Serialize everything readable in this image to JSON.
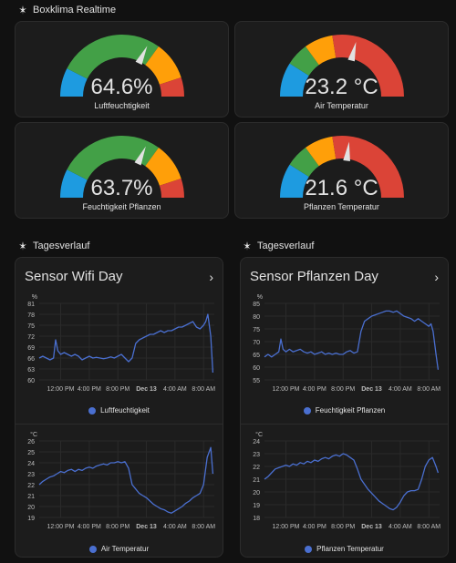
{
  "realtime": {
    "title": "Boxklima Realtime",
    "gauges": [
      {
        "value": 64.6,
        "display": "64.6%",
        "label": "Luftfeuchtigkeit",
        "min": 0,
        "max": 100,
        "type": "humidity"
      },
      {
        "value": 23.2,
        "display": "23.2 °C",
        "label": "Air Temperatur",
        "min": 0,
        "max": 40,
        "type": "temperature"
      },
      {
        "value": 63.7,
        "display": "63.7%",
        "label": "Feuchtigkeit Pflanzen",
        "min": 0,
        "max": 100,
        "type": "humidity"
      },
      {
        "value": 21.6,
        "display": "21.6 °C",
        "label": "Pflanzen Temperatur",
        "min": 0,
        "max": 40,
        "type": "temperature"
      }
    ],
    "colors": {
      "blue": "#1e9be0",
      "green": "#43a047",
      "orange": "#ff9f09",
      "red": "#db4437",
      "needle": "#e1e1e1"
    }
  },
  "history": [
    {
      "section": "Tagesverlauf",
      "title": "Sensor Wifi Day",
      "chevron": "›",
      "x_ticks": [
        "12:00 PM",
        "4:00 PM",
        "8:00 PM",
        "Dec 13",
        "4:00 AM",
        "8:00 AM"
      ]
    },
    {
      "section": "Tagesverlauf",
      "title": "Sensor Pflanzen Day",
      "chevron": "›",
      "x_ticks": [
        "12:00 PM",
        "4:00 PM",
        "8:00 PM",
        "Dec 13",
        "4:00 AM",
        "8:00 AM"
      ]
    }
  ],
  "chart_data": [
    {
      "type": "line",
      "title": "",
      "ylabel": "%",
      "ylim": [
        60,
        81
      ],
      "y_ticks": [
        60,
        63,
        66,
        69,
        72,
        75,
        78,
        81
      ],
      "x_ticks": [
        "12:00 PM",
        "4:00 PM",
        "8:00 PM",
        "Dec 13",
        "4:00 AM",
        "8:00 AM"
      ],
      "xlim": [
        9,
        33.5
      ],
      "series": [
        {
          "name": "Luftfeuchtigkeit",
          "color": "#4a6fd0",
          "x": [
            9,
            9.5,
            10,
            10.5,
            11,
            11.3,
            11.6,
            12,
            12.5,
            13,
            13.5,
            14,
            14.5,
            15,
            15.5,
            16,
            16.5,
            17,
            17.5,
            18,
            18.5,
            19,
            19.5,
            20,
            20.5,
            21,
            21.5,
            22,
            22.5,
            23,
            23.5,
            24,
            24.5,
            25,
            25.5,
            26,
            26.5,
            27,
            27.5,
            28,
            28.5,
            29,
            29.5,
            30,
            30.5,
            31,
            31.5,
            32,
            32.3,
            32.6,
            33,
            33.3
          ],
          "y": [
            66,
            66.5,
            66,
            65.5,
            66,
            71,
            68,
            67,
            67.5,
            67,
            66.5,
            67,
            66.5,
            65.5,
            66,
            66.5,
            66,
            66.2,
            66,
            65.8,
            66,
            66.3,
            66,
            66.5,
            67,
            66,
            65,
            66,
            70,
            71,
            71.5,
            72,
            72.5,
            72.5,
            73,
            73.5,
            73,
            73.5,
            73.5,
            74,
            74.5,
            74.5,
            75,
            75.5,
            76,
            74.5,
            74,
            75,
            76,
            78,
            72,
            62
          ]
        }
      ]
    },
    {
      "type": "line",
      "title": "",
      "ylabel": "°C",
      "ylim": [
        19,
        26
      ],
      "y_ticks": [
        19,
        20,
        21,
        22,
        23,
        24,
        25,
        26
      ],
      "x_ticks": [
        "12:00 PM",
        "4:00 PM",
        "8:00 PM",
        "Dec 13",
        "4:00 AM",
        "8:00 AM"
      ],
      "xlim": [
        9,
        33.5
      ],
      "series": [
        {
          "name": "Air Temperatur",
          "color": "#4a6fd0",
          "x": [
            9,
            9.5,
            10,
            10.5,
            11,
            11.5,
            12,
            12.5,
            13,
            13.5,
            14,
            14.5,
            15,
            15.5,
            16,
            16.5,
            17,
            17.5,
            18,
            18.5,
            19,
            19.5,
            20,
            20.5,
            21,
            21.5,
            22,
            22.5,
            23,
            23.5,
            24,
            24.5,
            25,
            25.5,
            26,
            26.5,
            27,
            27.5,
            28,
            28.5,
            29,
            29.5,
            30,
            30.5,
            31,
            31.5,
            32,
            32.5,
            33,
            33.3
          ],
          "y": [
            22,
            22.3,
            22.5,
            22.7,
            22.8,
            23,
            23.2,
            23.1,
            23.3,
            23.4,
            23.2,
            23.4,
            23.3,
            23.5,
            23.6,
            23.5,
            23.7,
            23.8,
            23.9,
            23.8,
            24,
            24,
            24.1,
            24,
            24.1,
            23.5,
            22,
            21.6,
            21.2,
            21,
            20.8,
            20.5,
            20.2,
            20,
            19.8,
            19.7,
            19.5,
            19.4,
            19.6,
            19.8,
            20,
            20.3,
            20.5,
            20.8,
            21,
            21.2,
            22,
            24.5,
            25.4,
            23
          ]
        }
      ]
    },
    {
      "type": "line",
      "title": "",
      "ylabel": "%",
      "ylim": [
        55,
        85
      ],
      "y_ticks": [
        55,
        60,
        65,
        70,
        75,
        80,
        85
      ],
      "x_ticks": [
        "12:00 PM",
        "4:00 PM",
        "8:00 PM",
        "Dec 13",
        "4:00 AM",
        "8:00 AM"
      ],
      "xlim": [
        9,
        33.5
      ],
      "series": [
        {
          "name": "Feuchtigkeit Pflanzen",
          "color": "#4a6fd0",
          "x": [
            9,
            9.5,
            10,
            10.5,
            11,
            11.3,
            11.6,
            12,
            12.5,
            13,
            13.5,
            14,
            14.5,
            15,
            15.5,
            16,
            16.5,
            17,
            17.5,
            18,
            18.5,
            19,
            19.5,
            20,
            20.5,
            21,
            21.5,
            22,
            22.5,
            23,
            23.5,
            24,
            24.5,
            25,
            25.5,
            26,
            26.5,
            27,
            27.5,
            28,
            28.5,
            29,
            29.5,
            30,
            30.5,
            31,
            31.5,
            32,
            32.3,
            32.6,
            33,
            33.3
          ],
          "y": [
            64,
            65,
            64,
            65,
            66,
            71,
            67,
            66,
            67,
            66,
            66.5,
            67,
            66,
            65.5,
            66,
            65,
            65.5,
            66,
            65,
            65.5,
            65,
            65.5,
            65,
            65,
            66,
            66.5,
            65.5,
            66,
            74,
            78,
            79,
            80,
            80.5,
            81,
            81.5,
            82,
            82,
            81.5,
            82,
            81,
            80,
            79.5,
            79,
            78,
            79,
            78,
            77,
            76,
            77,
            74,
            65,
            59
          ]
        }
      ]
    },
    {
      "type": "line",
      "title": "",
      "ylabel": "°C",
      "ylim": [
        18,
        24
      ],
      "y_ticks": [
        18,
        19,
        20,
        21,
        22,
        23,
        24
      ],
      "x_ticks": [
        "12:00 PM",
        "4:00 PM",
        "8:00 PM",
        "Dec 13",
        "4:00 AM",
        "8:00 AM"
      ],
      "xlim": [
        9,
        33.5
      ],
      "series": [
        {
          "name": "Pflanzen Temperatur",
          "color": "#4a6fd0",
          "x": [
            9,
            9.5,
            10,
            10.5,
            11,
            11.5,
            12,
            12.5,
            13,
            13.5,
            14,
            14.5,
            15,
            15.5,
            16,
            16.5,
            17,
            17.5,
            18,
            18.5,
            19,
            19.5,
            20,
            20.5,
            21,
            21.5,
            22,
            22.5,
            23,
            23.5,
            24,
            24.5,
            25,
            25.5,
            26,
            26.5,
            27,
            27.5,
            28,
            28.5,
            29,
            29.5,
            30,
            30.5,
            31,
            31.5,
            32,
            32.5,
            33,
            33.3
          ],
          "y": [
            21,
            21.2,
            21.5,
            21.8,
            21.9,
            22,
            22.1,
            22,
            22.2,
            22.1,
            22.3,
            22.2,
            22.4,
            22.3,
            22.5,
            22.4,
            22.6,
            22.7,
            22.6,
            22.8,
            22.9,
            22.8,
            23,
            22.9,
            22.7,
            22.5,
            21.8,
            21,
            20.6,
            20.2,
            19.9,
            19.6,
            19.3,
            19.1,
            18.9,
            18.7,
            18.6,
            18.8,
            19.2,
            19.7,
            20,
            20.1,
            20.1,
            20.2,
            21,
            22,
            22.5,
            22.7,
            22,
            21.5
          ]
        }
      ]
    }
  ]
}
